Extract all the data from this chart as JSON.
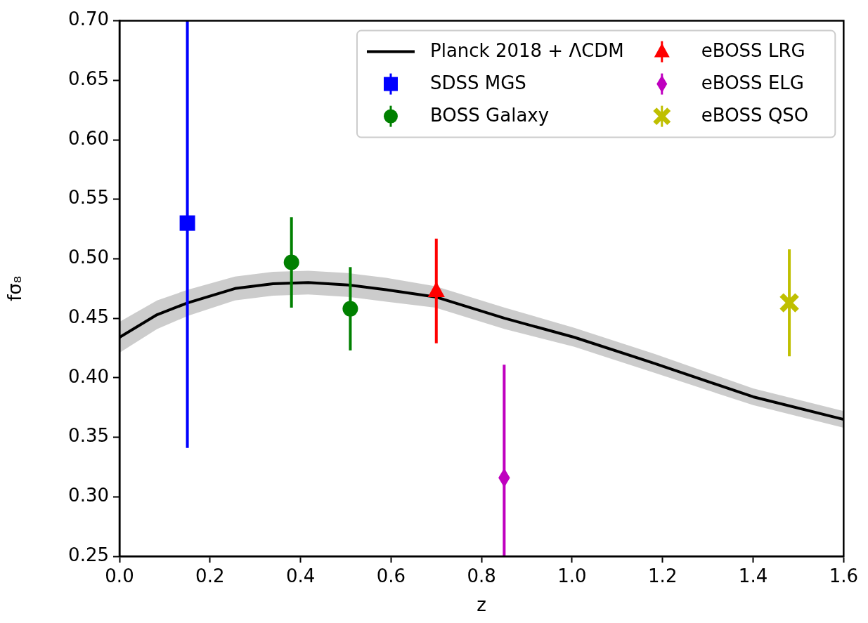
{
  "chart_data": {
    "type": "scatter",
    "xlabel": "z",
    "ylabel": "fσ₈",
    "xlim": [
      0,
      1.6
    ],
    "ylim": [
      0.25,
      0.7
    ],
    "xticks": [
      {
        "value": 0,
        "label": "0.0"
      },
      0.2,
      0.4,
      0.6,
      0.8,
      {
        "value": 1,
        "label": "1.0"
      },
      1.2,
      1.4,
      1.6
    ],
    "yticks": [
      0.25,
      {
        "value": 0.3,
        "label": "0.30"
      },
      0.35,
      {
        "value": 0.4,
        "label": "0.40"
      },
      0.45,
      {
        "value": 0.5,
        "label": "0.50"
      },
      0.55,
      {
        "value": 0.6,
        "label": "0.60"
      },
      0.65,
      {
        "value": 0.7,
        "label": "0.70"
      }
    ],
    "legend": "top right",
    "grid": false,
    "series": [
      {
        "name": "Planck 2018 + ΛCDM",
        "type": "line",
        "marker": "none",
        "color": "#000000",
        "x": [
          0,
          0.083,
          0.151,
          0.255,
          0.339,
          0.417,
          0.505,
          0.589,
          0.698,
          0.851,
          1.005,
          1.183,
          1.4,
          1.6
        ],
        "values": [
          0.434,
          0.453,
          0.463,
          0.475,
          0.479,
          0.48,
          0.478,
          0.474,
          0.468,
          0.45,
          0.434,
          0.412,
          0.384,
          0.365
        ],
        "lower": [
          0.421,
          0.441,
          0.452,
          0.465,
          0.469,
          0.47,
          0.468,
          0.464,
          0.459,
          0.441,
          0.426,
          0.404,
          0.377,
          0.358
        ],
        "upper": [
          0.447,
          0.465,
          0.474,
          0.485,
          0.489,
          0.49,
          0.488,
          0.484,
          0.477,
          0.459,
          0.442,
          0.42,
          0.391,
          0.372
        ]
      },
      {
        "name": "SDSS MGS",
        "type": "scatter",
        "marker": "square",
        "color": "#0000ff",
        "x": [
          0.15
        ],
        "values": [
          0.53
        ],
        "errors": [
          [
            0.341,
            0.7
          ]
        ]
      },
      {
        "name": "BOSS Galaxy",
        "type": "scatter",
        "marker": "circle",
        "color": "#008000",
        "x": [
          0.38,
          0.51
        ],
        "values": [
          0.497,
          0.458
        ],
        "errors": [
          0.038,
          0.035
        ]
      },
      {
        "name": "eBOSS LRG",
        "type": "scatter",
        "marker": "triangle",
        "color": "#ff0000",
        "x": [
          0.7
        ],
        "values": [
          0.473
        ],
        "errors": [
          0.044
        ]
      },
      {
        "name": "eBOSS ELG",
        "type": "scatter",
        "marker": "diamond",
        "color": "#bf00bf",
        "x": [
          0.85
        ],
        "values": [
          0.316
        ],
        "errors": [
          [
            0.25,
            0.411
          ]
        ]
      },
      {
        "name": "eBOSS QSO",
        "type": "scatter",
        "marker": "cross",
        "color": "#bfbf00",
        "x": [
          1.48
        ],
        "values": [
          0.463
        ],
        "errors": [
          0.045
        ]
      }
    ]
  }
}
